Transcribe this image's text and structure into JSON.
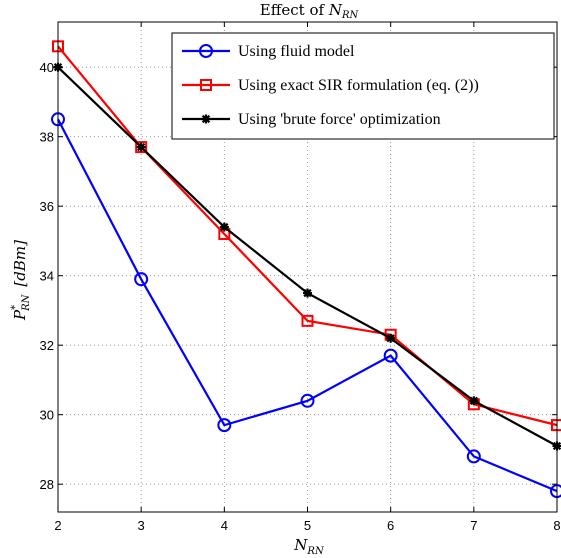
{
  "chart_data": {
    "type": "line",
    "title": {
      "prefix": "Effect of ",
      "main": "N",
      "sub": "RN"
    },
    "xlabel": {
      "main": "N",
      "sub": "RN"
    },
    "ylabel": {
      "main": "P",
      "sup": "*",
      "sub": "RN",
      "unit": "[dBm]"
    },
    "x": [
      2,
      3,
      4,
      5,
      6,
      7,
      8
    ],
    "xlim": [
      2,
      8
    ],
    "ylim": [
      27.2,
      41.3
    ],
    "xticks": [
      "2",
      "3",
      "4",
      "5",
      "6",
      "7",
      "8"
    ],
    "yticks": [
      28,
      30,
      32,
      34,
      36,
      38,
      40
    ],
    "grid": true,
    "legend_position": "top-right",
    "series": [
      {
        "name": "Using fluid model",
        "color": "#0000ff",
        "marker": "circle",
        "values": [
          38.5,
          33.9,
          29.7,
          30.4,
          31.7,
          28.8,
          27.8
        ]
      },
      {
        "name": "Using exact SIR formulation (eq. (2))",
        "color": "#ff0000",
        "marker": "square",
        "values": [
          40.6,
          37.7,
          35.2,
          32.7,
          32.3,
          30.3,
          29.7
        ]
      },
      {
        "name": "Using 'brute force' optimization",
        "color": "#000000",
        "marker": "star",
        "values": [
          40.0,
          37.7,
          35.4,
          33.5,
          32.2,
          30.4,
          29.1
        ]
      }
    ]
  }
}
